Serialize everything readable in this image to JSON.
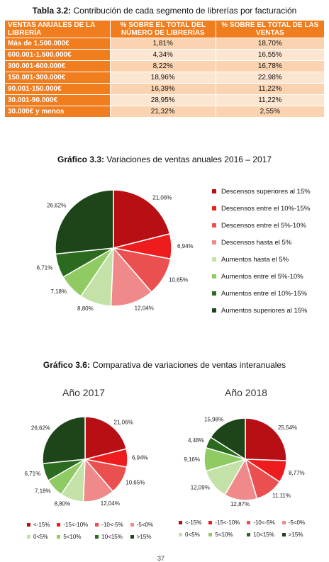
{
  "table": {
    "caption_bold": "Tabla 3.2:",
    "caption_text": " Contribución de cada segmento de librerías por facturación",
    "headers": [
      "VENTAS ANUALES DE LA LIBRERÍA",
      "% SOBRE EL TOTAL DEL NÚMERO DE LIBRERÍAS",
      "% SOBRE EL TOTAL DE LAS VENTAS"
    ],
    "rows": [
      [
        "Más de 1.500.000€",
        "1,81%",
        "18,70%"
      ],
      [
        "600.001-1.500.000€",
        "4,34%",
        "16,55%"
      ],
      [
        "300.001-600.000€",
        "8,22%",
        "16,78%"
      ],
      [
        "150.001-300.000€",
        "18,96%",
        "22,98%"
      ],
      [
        "90.001-150.000€",
        "16,39%",
        "11,22%"
      ],
      [
        "30.001-90.000€",
        "28,95%",
        "11,22%"
      ],
      [
        "30.000€ y menos",
        "21,32%",
        "2,55%"
      ]
    ]
  },
  "chart1": {
    "caption_bold": "Gráfico 3.3:",
    "caption_text": " Variaciones de ventas anuales 2016 – 2017"
  },
  "chart2": {
    "caption_bold": "Gráfico 3.6:",
    "caption_text": " Comparativa de variaciones de ventas interanuales"
  },
  "page_number": "37",
  "chart_data": [
    {
      "type": "pie",
      "title": "",
      "categories": [
        "Descensos superiores al 15%",
        "Descensos entre el 10%-15%",
        "Descensos entre el 5%-10%",
        "Descensos hasta el 5%",
        "Aumentos hasta el 5%",
        "Aumentos entre el 5%-10%",
        "Aumentos entre el 10%-15%",
        "Aumentos superiores al 15%"
      ],
      "values": [
        21.06,
        6.94,
        10.65,
        12.04,
        8.8,
        7.18,
        6.71,
        26.62
      ],
      "labels": [
        "21,06%",
        "6,94%",
        "10,65%",
        "12,04%",
        "8,80%",
        "7,18%",
        "6,71%",
        "26,62%"
      ],
      "colors": [
        "#b80f15",
        "#ee1c1c",
        "#ea5050",
        "#f08a8a",
        "#c4e2a8",
        "#8fcb62",
        "#2b6a1f",
        "#1d4519"
      ],
      "legend": "right"
    },
    {
      "type": "pie",
      "title": "Año 2017",
      "categories": [
        "<-15%",
        "-15<-10%",
        "-10<-5%",
        "-5<0%",
        "0<5%",
        "5<10%",
        "10<15%",
        ">15%"
      ],
      "values": [
        21.06,
        6.94,
        10.65,
        12.04,
        8.8,
        7.18,
        6.71,
        26.62
      ],
      "labels": [
        "21,06%",
        "6,94%",
        "10,65%",
        "12,04%",
        "8,80%",
        "7,18%",
        "6,71%",
        "26,62%"
      ],
      "colors": [
        "#b80f15",
        "#ee1c1c",
        "#ea5050",
        "#f08a8a",
        "#c4e2a8",
        "#8fcb62",
        "#2b6a1f",
        "#1d4519"
      ],
      "legend": "bottom"
    },
    {
      "type": "pie",
      "title": "Año 2018",
      "categories": [
        "<-15%",
        "-15<-10%",
        "-10<-5%",
        "-5<0%",
        "0<5%",
        "5<10%",
        "10<15%",
        ">15%"
      ],
      "values": [
        25.54,
        8.77,
        11.11,
        12.87,
        12.09,
        9.16,
        4.48,
        15.98
      ],
      "labels": [
        "25,54%",
        "8,77%",
        "11,11%",
        "12,87%",
        "12,09%",
        "9,16%",
        "4,48%",
        "15,98%"
      ],
      "colors": [
        "#b80f15",
        "#ee1c1c",
        "#ea5050",
        "#f08a8a",
        "#c4e2a8",
        "#8fcb62",
        "#2b6a1f",
        "#1d4519"
      ],
      "legend": "bottom"
    }
  ]
}
